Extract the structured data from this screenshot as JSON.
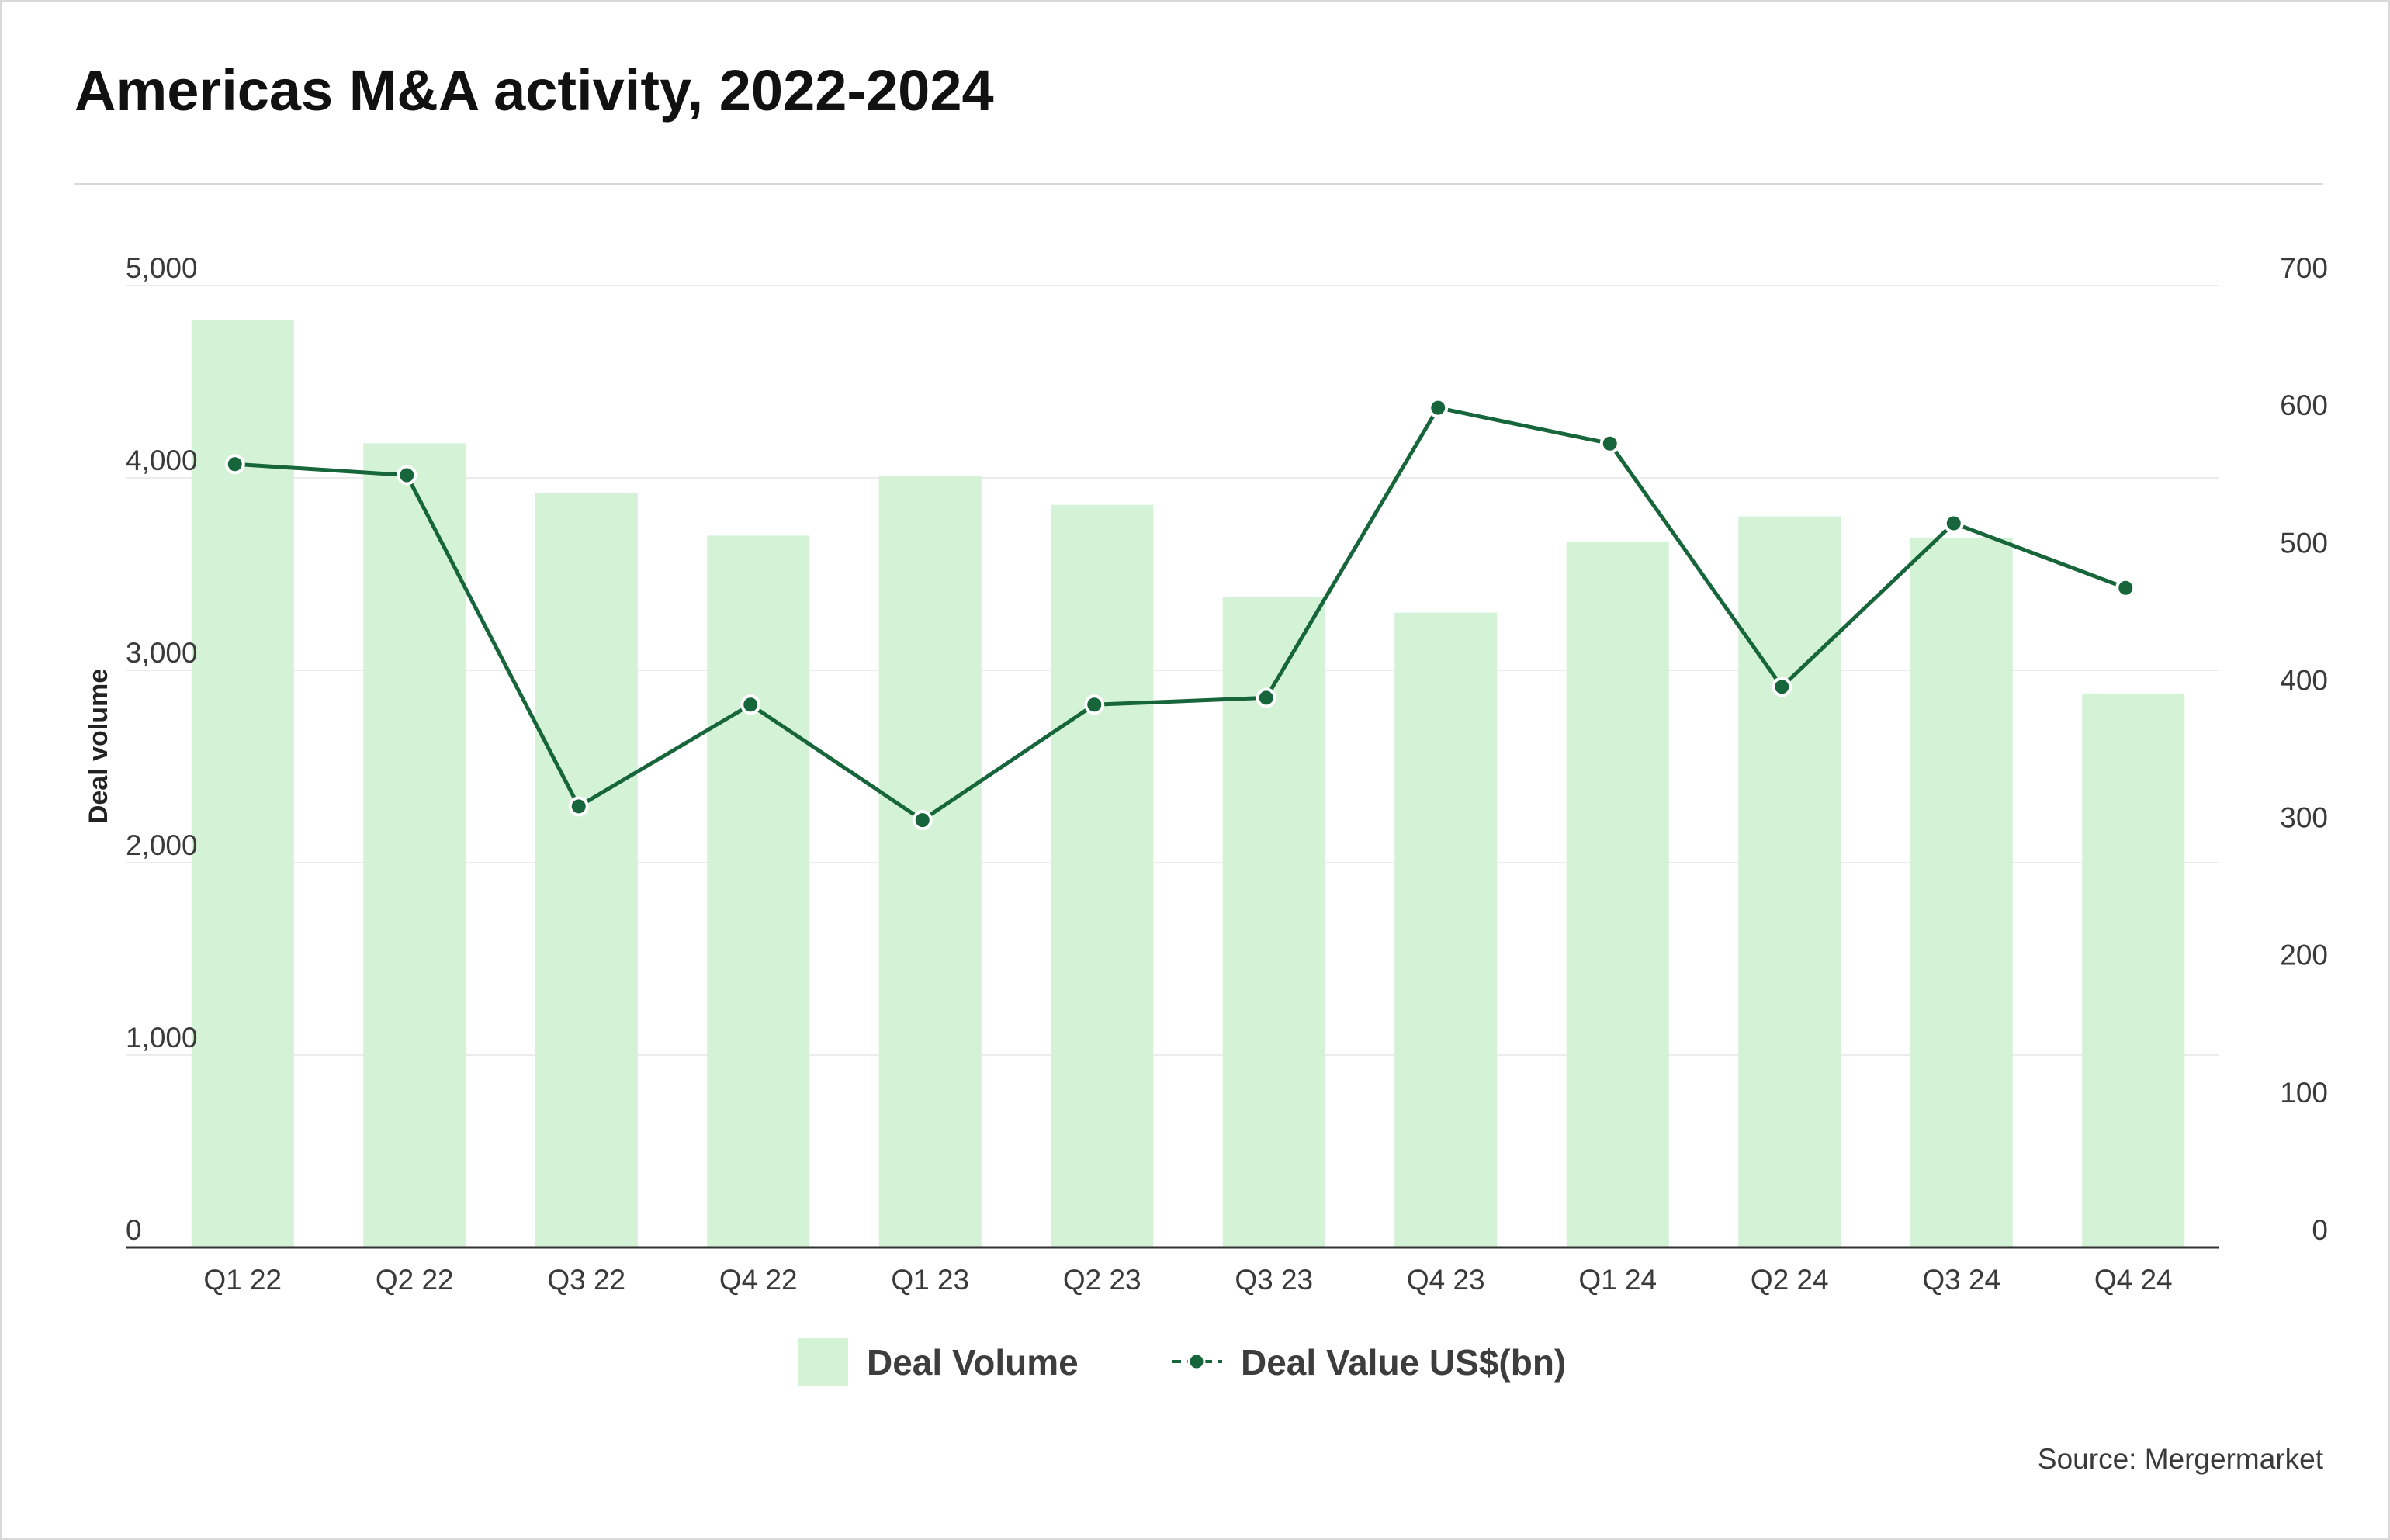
{
  "chart_data": {
    "type": "bar",
    "title": "Americas M&A activity, 2022-2024",
    "categories": [
      "Q1 22",
      "Q2 22",
      "Q3 22",
      "Q4 22",
      "Q1 23",
      "Q2 23",
      "Q3 23",
      "Q4 23",
      "Q1 24",
      "Q2 24",
      "Q3 24",
      "Q4 24"
    ],
    "series": [
      {
        "name": "Deal Volume",
        "type": "bar",
        "axis": "left",
        "color": "#d3f2d6",
        "values": [
          4820,
          4180,
          3920,
          3700,
          4010,
          3860,
          3380,
          3300,
          3670,
          3800,
          3690,
          2880
        ]
      },
      {
        "name": "Deal Value US$(bn)",
        "type": "line",
        "axis": "right",
        "color": "#17653a",
        "values": [
          570,
          562,
          321,
          395,
          311,
          395,
          400,
          611,
          585,
          408,
          527,
          480
        ]
      }
    ],
    "ylabel": "Deal volume",
    "ylabel_right": "",
    "ylim": [
      0,
      5000
    ],
    "ylim_right": [
      0,
      700
    ],
    "yticks": [
      "0",
      "1,000",
      "2,000",
      "3,000",
      "4,000",
      "5,000"
    ],
    "yticks_right": [
      "0",
      "100",
      "200",
      "300",
      "400",
      "500",
      "600",
      "700"
    ],
    "grid": true,
    "legend": "bottom-center",
    "source": "Source: Mergermarket"
  }
}
